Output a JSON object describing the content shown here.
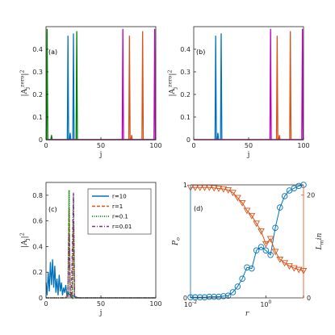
{
  "colors": {
    "blue": "#0072BD",
    "orange": "#D95319",
    "green": "#008000",
    "magenta": "#BF00BF",
    "purple": "#7E2F8E",
    "axis": "#262626"
  },
  "chart_data": [
    {
      "type": "line",
      "panel_label": "(a)",
      "xlabel": "j",
      "ylabel": "|A_j^{zero}|^2",
      "xlim": [
        0,
        100
      ],
      "ylim": [
        0,
        0.5
      ],
      "xticks": [
        0,
        50,
        100
      ],
      "yticks": [
        0,
        0.1,
        0.2,
        0.3,
        0.4
      ],
      "series": [
        {
          "color_key": "blue",
          "peaks": [
            [
              20,
              0.46
            ],
            [
              25,
              0.47
            ],
            [
              22,
              0.03
            ]
          ]
        },
        {
          "color_key": "green",
          "peaks": [
            [
              1,
              0.49
            ],
            [
              28,
              0.48
            ],
            [
              5,
              0.02
            ]
          ]
        },
        {
          "color_key": "orange",
          "peaks": [
            [
              76,
              0.46
            ],
            [
              88,
              0.48
            ],
            [
              78,
              0.02
            ]
          ]
        },
        {
          "color_key": "magenta",
          "peaks": [
            [
              70,
              0.49
            ],
            [
              99,
              0.49
            ]
          ]
        }
      ]
    },
    {
      "type": "line",
      "panel_label": "(b)",
      "xlabel": "j",
      "ylabel": "|A_j^{zero}|^2",
      "xlim": [
        0,
        100
      ],
      "ylim": [
        0,
        0.5
      ],
      "xticks": [
        0,
        50,
        100
      ],
      "yticks": [
        0,
        0.1,
        0.2,
        0.3,
        0.4
      ],
      "series": [
        {
          "color_key": "blue",
          "peaks": [
            [
              20,
              0.46
            ],
            [
              25,
              0.47
            ],
            [
              22,
              0.03
            ]
          ]
        },
        {
          "color_key": "orange",
          "peaks": [
            [
              76,
              0.46
            ],
            [
              88,
              0.48
            ],
            [
              78,
              0.02
            ]
          ]
        },
        {
          "color_key": "magenta",
          "peaks": [
            [
              70,
              0.49
            ],
            [
              99,
              0.49
            ]
          ]
        }
      ]
    },
    {
      "type": "line",
      "panel_label": "(c)",
      "xlabel": "j",
      "ylabel": "|A_j|^2",
      "xlim": [
        0,
        100
      ],
      "ylim": [
        0,
        0.9
      ],
      "xticks": [
        0,
        50,
        100
      ],
      "yticks": [
        0,
        0.2,
        0.4,
        0.6,
        0.8
      ],
      "legend_position": "top-right",
      "series": [
        {
          "name": "r=10",
          "color_key": "blue",
          "dash": "solid",
          "values": [
            [
              0,
              0.12
            ],
            [
              1,
              0.02
            ],
            [
              2,
              0.2
            ],
            [
              3,
              0.05
            ],
            [
              4,
              0.28
            ],
            [
              5,
              0.1
            ],
            [
              6,
              0.3
            ],
            [
              7,
              0.08
            ],
            [
              8,
              0.25
            ],
            [
              9,
              0.04
            ],
            [
              10,
              0.15
            ],
            [
              11,
              0.02
            ],
            [
              12,
              0.18
            ],
            [
              13,
              0.05
            ],
            [
              14,
              0.12
            ],
            [
              15,
              0.02
            ],
            [
              16,
              0.08
            ],
            [
              17,
              0.04
            ],
            [
              18,
              0.1
            ],
            [
              19,
              0.02
            ],
            [
              20,
              0.05
            ],
            [
              21,
              0.03
            ],
            [
              22,
              0.02
            ],
            [
              23,
              0.01
            ],
            [
              24,
              0.02
            ],
            [
              26,
              0.01
            ],
            [
              28,
              0.005
            ],
            [
              30,
              0
            ],
            [
              100,
              0
            ]
          ]
        },
        {
          "name": "r=1",
          "color_key": "orange",
          "dash": "dashed",
          "values": [
            [
              0,
              0
            ],
            [
              18,
              0
            ],
            [
              19,
              0.02
            ],
            [
              20,
              0.05
            ],
            [
              21,
              0.7
            ],
            [
              22,
              0.05
            ],
            [
              23,
              0.02
            ],
            [
              24,
              0
            ],
            [
              25,
              0.6
            ],
            [
              26,
              0.02
            ],
            [
              27,
              0
            ],
            [
              100,
              0
            ]
          ]
        },
        {
          "name": "r=0.1",
          "color_key": "green",
          "dash": "dotted",
          "values": [
            [
              0,
              0
            ],
            [
              18,
              0
            ],
            [
              19,
              0.01
            ],
            [
              20,
              0.03
            ],
            [
              21,
              0.84
            ],
            [
              22,
              0.03
            ],
            [
              23,
              0.01
            ],
            [
              24,
              0
            ],
            [
              25,
              0.81
            ],
            [
              26,
              0.01
            ],
            [
              27,
              0
            ],
            [
              100,
              0
            ]
          ]
        },
        {
          "name": "r=0.01",
          "color_key": "purple",
          "dash": "dashdot",
          "values": [
            [
              0,
              0
            ],
            [
              19,
              0
            ],
            [
              20,
              0.01
            ],
            [
              21,
              0.5
            ],
            [
              22,
              0.01
            ],
            [
              23,
              0
            ],
            [
              25,
              0.82
            ],
            [
              26,
              0.01
            ],
            [
              27,
              0
            ],
            [
              100,
              0
            ]
          ]
        }
      ]
    },
    {
      "type": "line",
      "panel_label": "(d)",
      "xlabel": "r",
      "xscale": "log",
      "xlim": [
        0.01,
        10
      ],
      "xtick_values": [
        0.01,
        1
      ],
      "xtick_labels": [
        "10^{-2}",
        "10^{0}"
      ],
      "left_axis": {
        "label": "P_o",
        "ylim": [
          0,
          1
        ],
        "yticks": [
          0,
          1
        ],
        "color_key": "blue"
      },
      "right_axis": {
        "label": "L_min",
        "ylim": [
          0,
          22
        ],
        "yticks": [
          0,
          20
        ],
        "color_key": "orange"
      },
      "series": [
        {
          "axis": "left",
          "marker": "circle",
          "color_key": "blue",
          "values": [
            [
              0.01,
              0.005
            ],
            [
              0.0133,
              0.005
            ],
            [
              0.0178,
              0.005
            ],
            [
              0.0237,
              0.005
            ],
            [
              0.0316,
              0.01
            ],
            [
              0.0422,
              0.01
            ],
            [
              0.0562,
              0.01
            ],
            [
              0.075,
              0.015
            ],
            [
              0.1,
              0.02
            ],
            [
              0.133,
              0.05
            ],
            [
              0.178,
              0.1
            ],
            [
              0.237,
              0.17
            ],
            [
              0.316,
              0.27
            ],
            [
              0.422,
              0.26
            ],
            [
              0.562,
              0.42
            ],
            [
              0.75,
              0.45
            ],
            [
              1.0,
              0.42
            ],
            [
              1.33,
              0.38
            ],
            [
              1.78,
              0.62
            ],
            [
              2.37,
              0.8
            ],
            [
              3.16,
              0.9
            ],
            [
              4.22,
              0.95
            ],
            [
              5.62,
              0.97
            ],
            [
              7.5,
              0.99
            ],
            [
              10,
              1.0
            ]
          ]
        },
        {
          "axis": "right",
          "marker": "triangle-down",
          "color_key": "orange",
          "values": [
            [
              0.01,
              21.5
            ],
            [
              0.0133,
              21.5
            ],
            [
              0.0178,
              21.5
            ],
            [
              0.0237,
              21.5
            ],
            [
              0.0316,
              21.5
            ],
            [
              0.0422,
              21.4
            ],
            [
              0.0562,
              21.3
            ],
            [
              0.075,
              21.2
            ],
            [
              0.1,
              21.0
            ],
            [
              0.133,
              20.5
            ],
            [
              0.178,
              19.5
            ],
            [
              0.237,
              18.5
            ],
            [
              0.316,
              17.0
            ],
            [
              0.422,
              16.0
            ],
            [
              0.562,
              14.5
            ],
            [
              0.75,
              13.0
            ],
            [
              1.0,
              10.5
            ],
            [
              1.33,
              11.5
            ],
            [
              1.78,
              9.0
            ],
            [
              2.37,
              7.5
            ],
            [
              3.16,
              6.8
            ],
            [
              4.22,
              6.2
            ],
            [
              5.62,
              5.8
            ],
            [
              7.5,
              5.5
            ],
            [
              10,
              5.3
            ]
          ]
        }
      ]
    }
  ]
}
